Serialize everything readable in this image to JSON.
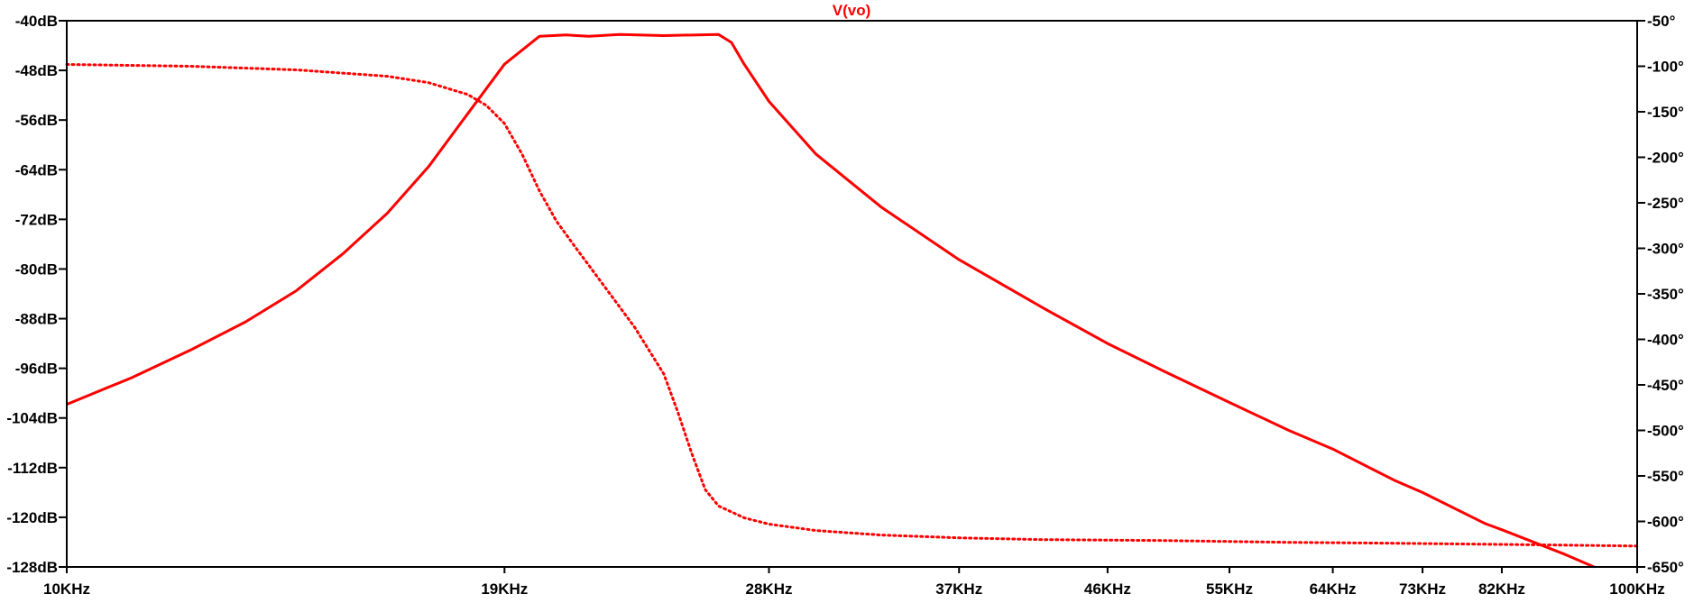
{
  "chart_data": {
    "type": "line",
    "title": "V(vo)",
    "xscale": "log",
    "xlim": [
      10000,
      100000
    ],
    "ylim_left": [
      -128,
      -40
    ],
    "ylim_right": [
      -650,
      -50
    ],
    "grid": false,
    "colors": {
      "trace": "#ff0000",
      "axes": "#000000"
    },
    "x_tick_values": [
      10000,
      19000,
      28000,
      37000,
      46000,
      55000,
      64000,
      73000,
      82000,
      100000
    ],
    "x_tick_labels": [
      "10KHz",
      "19KHz",
      "28KHz",
      "37KHz",
      "46KHz",
      "55KHz",
      "64KHz",
      "73KHz",
      "82KHz",
      "100KHz"
    ],
    "y_left_tick_values": [
      -40,
      -48,
      -56,
      -64,
      -72,
      -80,
      -88,
      -96,
      -104,
      -112,
      -120,
      -128
    ],
    "y_left_tick_labels": [
      "-40dB",
      "-48dB",
      "-56dB",
      "-64dB",
      "-72dB",
      "-80dB",
      "-88dB",
      "-96dB",
      "-104dB",
      "-112dB",
      "-120dB",
      "-128dB"
    ],
    "y_right_tick_values": [
      -50,
      -100,
      -150,
      -200,
      -250,
      -300,
      -350,
      -400,
      -450,
      -500,
      -550,
      -600,
      -650
    ],
    "y_right_tick_labels": [
      "-50°",
      "-100°",
      "-150°",
      "-200°",
      "-250°",
      "-300°",
      "-350°",
      "-400°",
      "-450°",
      "-500°",
      "-550°",
      "-600°",
      "-650°"
    ],
    "series": [
      {
        "axis": "left",
        "style": "solid",
        "x": [
          10000,
          11000,
          12000,
          13000,
          14000,
          15000,
          16000,
          17000,
          18000,
          19000,
          20000,
          20800,
          21500,
          22500,
          24000,
          26000,
          26500,
          27000,
          28000,
          30000,
          33000,
          37000,
          42000,
          46000,
          50000,
          55000,
          60000,
          64000,
          70000,
          73000,
          80000,
          82000,
          90000,
          100000
        ],
        "y": [
          -101.8,
          -97.5,
          -93,
          -88.5,
          -83.5,
          -77.5,
          -71,
          -63.5,
          -55,
          -47,
          -42.5,
          -42.3,
          -42.5,
          -42.2,
          -42.4,
          -42.2,
          -43.5,
          -47,
          -53,
          -61.5,
          -70,
          -78.5,
          -86.5,
          -92,
          -96.5,
          -101.5,
          -106,
          -109,
          -114,
          -116,
          -121,
          -122,
          -126,
          -131
        ]
      },
      {
        "axis": "right",
        "style": "dotted",
        "x": [
          10000,
          12000,
          14000,
          16000,
          17000,
          18000,
          18500,
          19000,
          19500,
          20000,
          20500,
          21000,
          22000,
          23000,
          24000,
          24500,
          25000,
          25500,
          26000,
          27000,
          28000,
          30000,
          33000,
          37000,
          42000,
          50000,
          60000,
          70000,
          80000,
          90000,
          100000
        ],
        "y": [
          -98,
          -100,
          -104,
          -111,
          -118,
          -131,
          -143,
          -163,
          -197,
          -237,
          -270,
          -295,
          -342,
          -387,
          -438,
          -480,
          -525,
          -565,
          -583,
          -596,
          -603,
          -610,
          -615,
          -618,
          -620,
          -621,
          -623,
          -624,
          -625,
          -626,
          -627
        ]
      }
    ]
  }
}
